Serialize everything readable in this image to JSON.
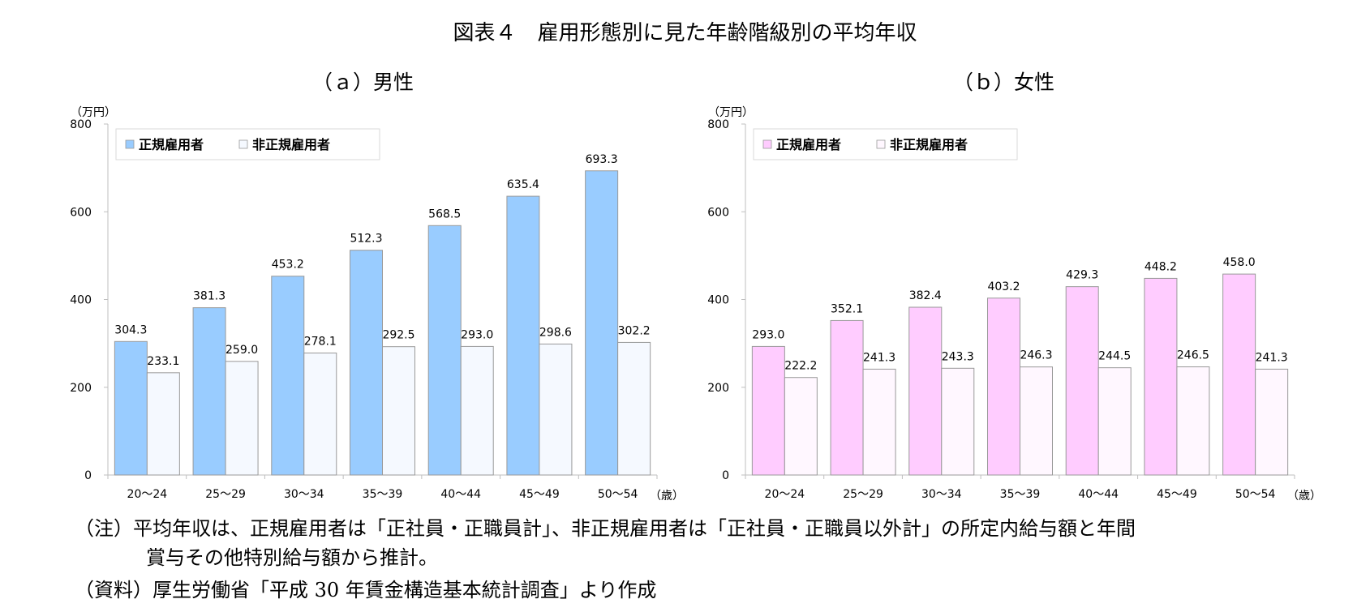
{
  "figure": {
    "title": "図表４　雇用形態別に見た年齢階級別の平均年収"
  },
  "chart_data": [
    {
      "type": "bar",
      "title": "（ａ）男性",
      "y_unit": "（万円）",
      "x_unit": "（歳）",
      "ylim": [
        0,
        800
      ],
      "yticks": [
        0,
        200,
        400,
        600,
        800
      ],
      "legend_position": "top-left",
      "grid": false,
      "categories": [
        "20～24",
        "25～29",
        "30～34",
        "35～39",
        "40～44",
        "45～49",
        "50～54"
      ],
      "series": [
        {
          "name": "正規雇用者",
          "values": [
            304.3,
            381.3,
            453.2,
            512.3,
            568.5,
            635.4,
            693.3
          ],
          "color": "#99ccff"
        },
        {
          "name": "非正規雇用者",
          "values": [
            233.1,
            259.0,
            278.1,
            292.5,
            293.0,
            298.6,
            302.2
          ],
          "color": "#f5f9ff"
        }
      ]
    },
    {
      "type": "bar",
      "title": "（ｂ）女性",
      "y_unit": "（万円）",
      "x_unit": "（歳）",
      "ylim": [
        0,
        800
      ],
      "yticks": [
        0,
        200,
        400,
        600,
        800
      ],
      "legend_position": "top-left",
      "grid": false,
      "categories": [
        "20～24",
        "25～29",
        "30～34",
        "35～39",
        "40～44",
        "45～49",
        "50～54"
      ],
      "series": [
        {
          "name": "正規雇用者",
          "values": [
            293.0,
            352.1,
            382.4,
            403.2,
            429.3,
            448.2,
            458.0
          ],
          "color": "#ffccff"
        },
        {
          "name": "非正規雇用者",
          "values": [
            222.2,
            241.3,
            243.3,
            246.3,
            244.5,
            246.5,
            241.3
          ],
          "color": "#fff7ff"
        }
      ]
    }
  ],
  "notes": {
    "note1": "（注）平均年収は、正規雇用者は「正社員・正職員計」、非正規雇用者は「正社員・正職員以外計」の所定内給与額と年間",
    "note1_cont": "賞与その他特別給与額から推計。",
    "source": "（資料）厚生労働省「平成 30 年賃金構造基本統計調査」より作成"
  },
  "colors": {
    "bar_border": "#999999",
    "axis": "#bfbfbf",
    "legend_border": "#d9d9d9"
  }
}
